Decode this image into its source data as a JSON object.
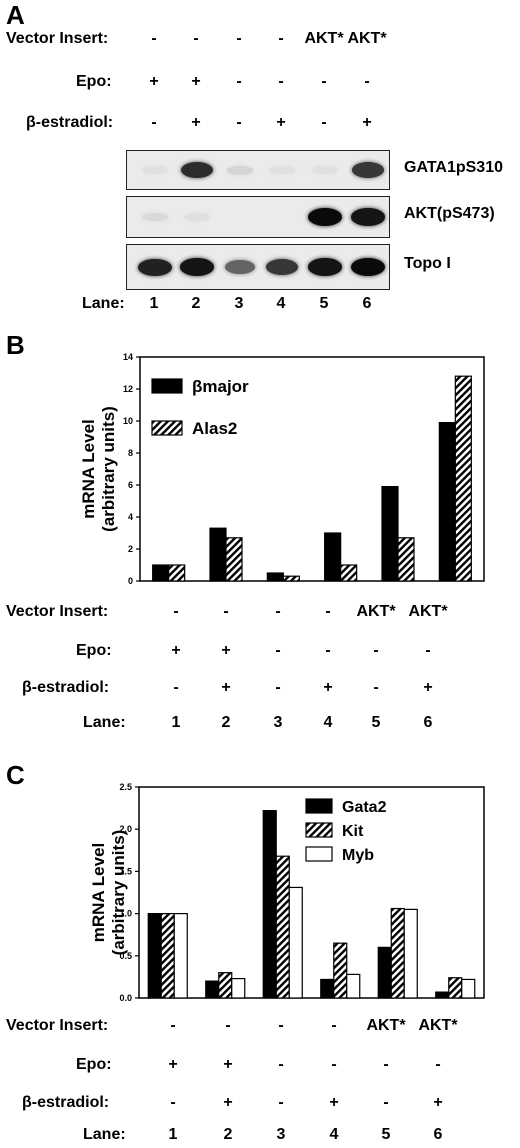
{
  "lanes": [
    "1",
    "2",
    "3",
    "4",
    "5",
    "6"
  ],
  "conditions": {
    "vector_insert": {
      "label": "Vector Insert:",
      "values": [
        "-",
        "-",
        "-",
        "-",
        "AKT*",
        "AKT*"
      ]
    },
    "epo": {
      "label": "Epo:",
      "values": [
        "+",
        "+",
        "-",
        "-",
        "-",
        "-"
      ]
    },
    "estradiol": {
      "label": "β-estradiol:",
      "values": [
        "-",
        "+",
        "-",
        "+",
        "-",
        "+"
      ]
    },
    "lane": {
      "label": "Lane:"
    }
  },
  "panel_a": {
    "letter": "A",
    "blots": [
      {
        "label": "GATA1pS310",
        "intensity": [
          0.05,
          0.85,
          0.1,
          0.05,
          0.05,
          0.8
        ]
      },
      {
        "label": "AKT(pS473)",
        "intensity": [
          0.08,
          0.05,
          0.0,
          0.0,
          1.0,
          0.95
        ]
      },
      {
        "label": "Topo I",
        "intensity": [
          0.9,
          0.95,
          0.6,
          0.8,
          0.95,
          1.0
        ]
      }
    ]
  },
  "panel_b": {
    "letter": "B"
  },
  "panel_c": {
    "letter": "C"
  },
  "chart_data": [
    {
      "type": "bar",
      "categories": [
        "1",
        "2",
        "3",
        "4",
        "5",
        "6"
      ],
      "series": [
        {
          "name": "βmajor",
          "values": [
            1.0,
            3.3,
            0.5,
            3.0,
            5.9,
            9.9
          ]
        },
        {
          "name": "Alas2",
          "values": [
            1.0,
            2.7,
            0.3,
            1.0,
            2.7,
            12.8
          ]
        }
      ],
      "title": "",
      "xlabel": "",
      "ylabel": "mRNA Level (arbitrary units)",
      "ylabel_lines": [
        "mRNA Level",
        "(arbitrary units)"
      ],
      "yticks": [
        "0",
        "2",
        "4",
        "6",
        "8",
        "10",
        "12",
        "14"
      ],
      "ylim": [
        0,
        14
      ],
      "legend": "top-left",
      "grid": false
    },
    {
      "type": "bar",
      "categories": [
        "1",
        "2",
        "3",
        "4",
        "5",
        "6"
      ],
      "series": [
        {
          "name": "Gata2",
          "values": [
            1.0,
            0.2,
            2.22,
            0.22,
            0.6,
            0.07
          ]
        },
        {
          "name": "Kit",
          "values": [
            1.0,
            0.3,
            1.68,
            0.65,
            1.06,
            0.24
          ]
        },
        {
          "name": "Myb",
          "values": [
            1.0,
            0.23,
            1.31,
            0.28,
            1.05,
            0.22
          ]
        }
      ],
      "title": "",
      "xlabel": "",
      "ylabel": "mRNA Level (arbitrary units)",
      "ylabel_lines": [
        "mRNA Level",
        "(arbitrary units)"
      ],
      "yticks": [
        "0.0",
        "0.5",
        "1.0",
        "1.5",
        "2.0",
        "2.5"
      ],
      "ylim": [
        0,
        2.5
      ],
      "legend": "top-right",
      "grid": false
    }
  ]
}
